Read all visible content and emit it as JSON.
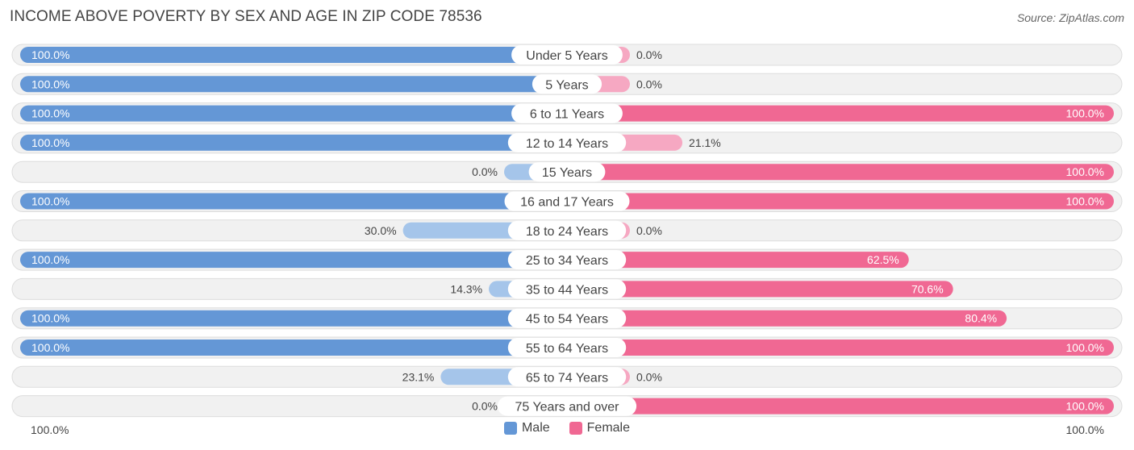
{
  "title": "INCOME ABOVE POVERTY BY SEX AND AGE IN ZIP CODE 78536",
  "source": "Source: ZipAtlas.com",
  "colors": {
    "male_strong": "#6497d6",
    "male_light": "#a5c5ea",
    "female_strong": "#f06893",
    "female_light": "#f6a8c2",
    "row_bg": "#f1f1f1"
  },
  "legend": {
    "male": "Male",
    "female": "Female"
  },
  "axis": {
    "left": "100.0%",
    "right": "100.0%"
  },
  "chart_data": {
    "type": "bar",
    "orientation": "horizontal-diverging",
    "title": "INCOME ABOVE POVERTY BY SEX AND AGE IN ZIP CODE 78536",
    "categories": [
      "Under 5 Years",
      "5 Years",
      "6 to 11 Years",
      "12 to 14 Years",
      "15 Years",
      "16 and 17 Years",
      "18 to 24 Years",
      "25 to 34 Years",
      "35 to 44 Years",
      "45 to 54 Years",
      "55 to 64 Years",
      "65 to 74 Years",
      "75 Years and over"
    ],
    "series": [
      {
        "name": "Male",
        "values": [
          100.0,
          100.0,
          100.0,
          100.0,
          0.0,
          100.0,
          30.0,
          100.0,
          14.3,
          100.0,
          100.0,
          23.1,
          0.0
        ]
      },
      {
        "name": "Female",
        "values": [
          0.0,
          0.0,
          100.0,
          21.1,
          100.0,
          100.0,
          0.0,
          62.5,
          70.6,
          80.4,
          100.0,
          0.0,
          100.0
        ]
      }
    ],
    "xlim": [
      0,
      100
    ],
    "legend_position": "bottom-center"
  }
}
